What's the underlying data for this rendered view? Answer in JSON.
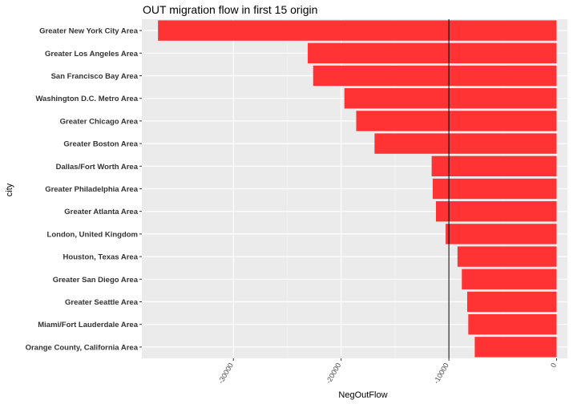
{
  "chart_data": {
    "type": "bar",
    "orientation": "horizontal",
    "title": "OUT migration flow in first 15 origin",
    "xlabel": "NegOutFlow",
    "ylabel": "city",
    "categories": [
      "Greater New York City Area",
      "Greater Los Angeles Area",
      "San Francisco Bay Area",
      "Washington D.C. Metro Area",
      "Greater Chicago Area",
      "Greater Boston Area",
      "Dallas/Fort Worth Area",
      "Greater Philadelphia Area",
      "Greater Atlanta Area",
      "London, United Kingdom",
      "Houston, Texas Area",
      "Greater San Diego Area",
      "Greater Seattle Area",
      "Miami/Fort Lauderdale Area",
      "Orange County, California Area"
    ],
    "values": [
      -37000,
      -23100,
      -22600,
      -19700,
      -18600,
      -16900,
      -11600,
      -11500,
      -11200,
      -10300,
      -9200,
      -8800,
      -8300,
      -8200,
      -7600
    ],
    "x_ticks": [
      -30000,
      -20000,
      -10000,
      0
    ],
    "x_tick_labels": [
      "-30000",
      "-20000",
      "-10000",
      "0"
    ],
    "xlim": [
      -38500,
      1000
    ],
    "reference_line": -10000,
    "bar_color": "#FF3333",
    "panel_color": "#EBEBEB",
    "grid": true,
    "legend": "none"
  }
}
